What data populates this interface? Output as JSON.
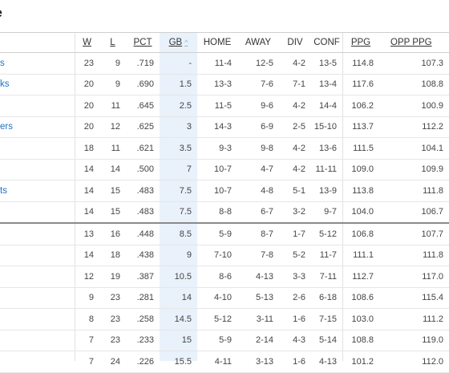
{
  "title": "e",
  "columns": [
    {
      "key": "team",
      "label": ""
    },
    {
      "key": "w",
      "label": "W",
      "underline": true
    },
    {
      "key": "l",
      "label": "L",
      "underline": true
    },
    {
      "key": "pct",
      "label": "PCT",
      "underline": true
    },
    {
      "key": "gb",
      "label": "GB",
      "underline": true,
      "sort_icon": "sort-arrow-icon"
    },
    {
      "key": "home",
      "label": "HOME"
    },
    {
      "key": "away",
      "label": "AWAY"
    },
    {
      "key": "div",
      "label": "DIV"
    },
    {
      "key": "conf",
      "label": "CONF"
    },
    {
      "key": "ppg",
      "label": "PPG",
      "underline": true
    },
    {
      "key": "oppg",
      "label": "OPP PPG",
      "underline": true
    }
  ],
  "rows": [
    {
      "team": "s",
      "w": "23",
      "l": "9",
      "pct": ".719",
      "gb": "-",
      "home": "11-4",
      "away": "12-5",
      "div": "4-2",
      "conf": "13-5",
      "ppg": "114.8",
      "oppg": "107.3"
    },
    {
      "team": "ks",
      "w": "20",
      "l": "9",
      "pct": ".690",
      "gb": "1.5",
      "home": "13-3",
      "away": "7-6",
      "div": "7-1",
      "conf": "13-4",
      "ppg": "117.6",
      "oppg": "108.8"
    },
    {
      "team": "",
      "w": "20",
      "l": "11",
      "pct": ".645",
      "gb": "2.5",
      "home": "11-5",
      "away": "9-6",
      "div": "4-2",
      "conf": "14-4",
      "ppg": "106.2",
      "oppg": "100.9"
    },
    {
      "team": "ers",
      "w": "20",
      "l": "12",
      "pct": ".625",
      "gb": "3",
      "home": "14-3",
      "away": "6-9",
      "div": "2-5",
      "conf": "15-10",
      "ppg": "113.7",
      "oppg": "112.2"
    },
    {
      "team": "",
      "w": "18",
      "l": "11",
      "pct": ".621",
      "gb": "3.5",
      "home": "9-3",
      "away": "9-8",
      "div": "4-2",
      "conf": "13-6",
      "ppg": "111.5",
      "oppg": "104.1"
    },
    {
      "team": "",
      "w": "14",
      "l": "14",
      "pct": ".500",
      "gb": "7",
      "home": "10-7",
      "away": "4-7",
      "div": "4-2",
      "conf": "11-11",
      "ppg": "109.0",
      "oppg": "109.9"
    },
    {
      "team": "ts",
      "w": "14",
      "l": "15",
      "pct": ".483",
      "gb": "7.5",
      "home": "10-7",
      "away": "4-8",
      "div": "5-1",
      "conf": "13-9",
      "ppg": "113.8",
      "oppg": "111.8"
    },
    {
      "team": "",
      "w": "14",
      "l": "15",
      "pct": ".483",
      "gb": "7.5",
      "home": "8-8",
      "away": "6-7",
      "div": "3-2",
      "conf": "9-7",
      "ppg": "104.0",
      "oppg": "106.7"
    },
    {
      "team": "",
      "w": "13",
      "l": "16",
      "pct": ".448",
      "gb": "8.5",
      "home": "5-9",
      "away": "8-7",
      "div": "1-7",
      "conf": "5-12",
      "ppg": "106.8",
      "oppg": "107.7"
    },
    {
      "team": "",
      "w": "14",
      "l": "18",
      "pct": ".438",
      "gb": "9",
      "home": "7-10",
      "away": "7-8",
      "div": "5-2",
      "conf": "11-7",
      "ppg": "111.1",
      "oppg": "111.8"
    },
    {
      "team": "",
      "w": "12",
      "l": "19",
      "pct": ".387",
      "gb": "10.5",
      "home": "8-6",
      "away": "4-13",
      "div": "3-3",
      "conf": "7-11",
      "ppg": "112.7",
      "oppg": "117.0"
    },
    {
      "team": "",
      "w": "9",
      "l": "23",
      "pct": ".281",
      "gb": "14",
      "home": "4-10",
      "away": "5-13",
      "div": "2-6",
      "conf": "6-18",
      "ppg": "108.6",
      "oppg": "115.4"
    },
    {
      "team": "",
      "w": "8",
      "l": "23",
      "pct": ".258",
      "gb": "14.5",
      "home": "5-12",
      "away": "3-11",
      "div": "1-6",
      "conf": "7-15",
      "ppg": "103.0",
      "oppg": "111.2"
    },
    {
      "team": "",
      "w": "7",
      "l": "23",
      "pct": ".233",
      "gb": "15",
      "home": "5-9",
      "away": "2-14",
      "div": "4-3",
      "conf": "5-14",
      "ppg": "108.8",
      "oppg": "119.0"
    },
    {
      "team": "",
      "w": "7",
      "l": "24",
      "pct": ".226",
      "gb": "15.5",
      "home": "4-11",
      "away": "3-13",
      "div": "1-6",
      "conf": "4-13",
      "ppg": "101.2",
      "oppg": "112.0"
    }
  ],
  "playoff_cut_after_row": 8
}
